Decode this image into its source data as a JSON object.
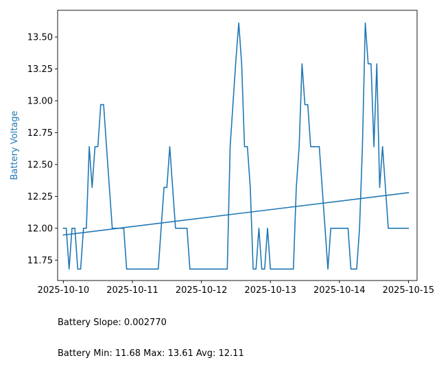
{
  "chart_data": {
    "type": "line",
    "ylabel": "Battery Voltage",
    "ylim": [
      11.59,
      13.71
    ],
    "xlim": [
      "2025-10-09T22:00",
      "2025-10-15T03:00"
    ],
    "y_ticks": [
      "11.75",
      "12.00",
      "12.25",
      "12.50",
      "12.75",
      "13.00",
      "13.25",
      "13.50"
    ],
    "x_ticks": [
      "2025-10-10",
      "2025-10-11",
      "2025-10-12",
      "2025-10-13",
      "2025-10-14",
      "2025-10-15"
    ],
    "grid": false,
    "colors": {
      "line": "#1f77b4",
      "trend": "#1f77b4",
      "ylabel": "#1f77b4"
    },
    "series": [
      {
        "points": [
          [
            "2025-10-10T00:00",
            12.0
          ],
          [
            "2025-10-10T01:00",
            12.0
          ],
          [
            "2025-10-10T02:00",
            11.68
          ],
          [
            "2025-10-10T03:00",
            12.0
          ],
          [
            "2025-10-10T04:00",
            12.0
          ],
          [
            "2025-10-10T05:00",
            11.68
          ],
          [
            "2025-10-10T06:00",
            11.68
          ],
          [
            "2025-10-10T07:00",
            12.0
          ],
          [
            "2025-10-10T08:00",
            12.0
          ],
          [
            "2025-10-10T09:00",
            12.64
          ],
          [
            "2025-10-10T10:00",
            12.32
          ],
          [
            "2025-10-10T11:00",
            12.64
          ],
          [
            "2025-10-10T12:00",
            12.64
          ],
          [
            "2025-10-10T13:00",
            12.97
          ],
          [
            "2025-10-10T14:00",
            12.97
          ],
          [
            "2025-10-10T15:00",
            12.64
          ],
          [
            "2025-10-10T16:00",
            12.32
          ],
          [
            "2025-10-10T17:00",
            12.0
          ],
          [
            "2025-10-10T21:00",
            12.0
          ],
          [
            "2025-10-10T22:00",
            11.68
          ],
          [
            "2025-10-11T09:00",
            11.68
          ],
          [
            "2025-10-11T11:00",
            12.32
          ],
          [
            "2025-10-11T12:00",
            12.32
          ],
          [
            "2025-10-11T13:00",
            12.64
          ],
          [
            "2025-10-11T15:00",
            12.0
          ],
          [
            "2025-10-11T19:00",
            12.0
          ],
          [
            "2025-10-11T20:00",
            11.68
          ],
          [
            "2025-10-12T09:00",
            11.68
          ],
          [
            "2025-10-12T10:00",
            12.64
          ],
          [
            "2025-10-12T12:00",
            13.32
          ],
          [
            "2025-10-12T13:00",
            13.61
          ],
          [
            "2025-10-12T14:00",
            13.29
          ],
          [
            "2025-10-12T15:00",
            12.64
          ],
          [
            "2025-10-12T16:00",
            12.64
          ],
          [
            "2025-10-12T17:00",
            12.32
          ],
          [
            "2025-10-12T18:00",
            11.68
          ],
          [
            "2025-10-12T19:00",
            11.68
          ],
          [
            "2025-10-12T20:00",
            12.0
          ],
          [
            "2025-10-12T21:00",
            11.68
          ],
          [
            "2025-10-12T22:00",
            11.68
          ],
          [
            "2025-10-12T23:00",
            12.0
          ],
          [
            "2025-10-13T00:00",
            11.68
          ],
          [
            "2025-10-13T08:00",
            11.68
          ],
          [
            "2025-10-13T09:00",
            12.32
          ],
          [
            "2025-10-13T10:00",
            12.64
          ],
          [
            "2025-10-13T11:00",
            13.29
          ],
          [
            "2025-10-13T12:00",
            12.97
          ],
          [
            "2025-10-13T13:00",
            12.97
          ],
          [
            "2025-10-13T14:00",
            12.64
          ],
          [
            "2025-10-13T17:00",
            12.64
          ],
          [
            "2025-10-13T18:00",
            12.32
          ],
          [
            "2025-10-13T19:00",
            12.0
          ],
          [
            "2025-10-13T20:00",
            11.68
          ],
          [
            "2025-10-13T21:00",
            12.0
          ],
          [
            "2025-10-14T03:00",
            12.0
          ],
          [
            "2025-10-14T04:00",
            11.68
          ],
          [
            "2025-10-14T06:00",
            11.68
          ],
          [
            "2025-10-14T07:00",
            12.0
          ],
          [
            "2025-10-14T08:00",
            12.64
          ],
          [
            "2025-10-14T09:00",
            13.61
          ],
          [
            "2025-10-14T10:00",
            13.29
          ],
          [
            "2025-10-14T11:00",
            13.29
          ],
          [
            "2025-10-14T12:00",
            12.64
          ],
          [
            "2025-10-14T13:00",
            13.29
          ],
          [
            "2025-10-14T14:00",
            12.32
          ],
          [
            "2025-10-14T15:00",
            12.64
          ],
          [
            "2025-10-14T16:00",
            12.32
          ],
          [
            "2025-10-14T17:00",
            12.0
          ],
          [
            "2025-10-15T00:00",
            12.0
          ]
        ]
      },
      {
        "points": [
          [
            "2025-10-10T00:00",
            11.947
          ],
          [
            "2025-10-15T00:00",
            12.279
          ]
        ]
      }
    ]
  },
  "stats": {
    "slope_line": "Battery Slope: 0.002770",
    "summary_line": "Battery Min: 11.68 Max: 13.61 Avg: 12.11"
  }
}
